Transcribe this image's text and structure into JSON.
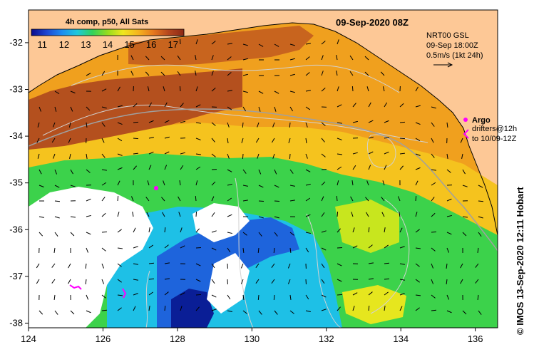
{
  "map": {
    "title": "09-Sep-2020 08Z",
    "colorbar": {
      "label": "4h comp, p50, All Sats",
      "ticks": [
        "11",
        "12",
        "13",
        "14",
        "15",
        "16",
        "17"
      ],
      "range": [
        10.5,
        17.5
      ],
      "colors": [
        "#0a0a8c",
        "#1e46d2",
        "#1e8cf0",
        "#1ec8dc",
        "#32d25a",
        "#96dc1e",
        "#f0e61e",
        "#f5b41e",
        "#e6781e",
        "#b4461e",
        "#8c2814"
      ]
    },
    "current_info": {
      "line1": "NRT00 GSL",
      "line2": "09-Sep 18:00Z",
      "line3": "0.5m/s (1kt 24h)"
    },
    "legend": {
      "argo_label": "Argo",
      "drifters_line1": "drifters@12h",
      "drifters_line2": "to 10/09-12Z"
    },
    "x_axis": {
      "range": [
        124,
        136.6
      ],
      "ticks": [
        "124",
        "126",
        "128",
        "130",
        "132",
        "134",
        "136"
      ]
    },
    "y_axis": {
      "range": [
        -38.1,
        -31.3
      ],
      "ticks": [
        "-32",
        "-33",
        "-34",
        "-35",
        "-36",
        "-37",
        "-38"
      ]
    },
    "credit": "© IMOS 13-Sep-2020 12:11 Hobart",
    "colors": {
      "land": "#fdc896",
      "no_data": "#ffffff",
      "argo": "#ff00ff",
      "drifter": "#ff00ff",
      "contour": "#d2d2d2",
      "bathymetry": "#a0a0a0"
    }
  }
}
